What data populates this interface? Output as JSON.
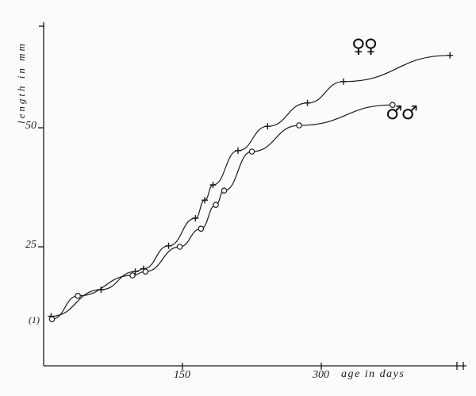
{
  "figure": {
    "background": "#fbfbfa",
    "ink": "#1a1a1a"
  },
  "chart_data": {
    "type": "line",
    "title": "",
    "xlabel": "age in days",
    "ylabel": "length in mm",
    "x_ticks": [
      150,
      300
    ],
    "y_ticks": [
      25,
      50
    ],
    "xlim": [
      0,
      457
    ],
    "ylim": [
      0,
      72
    ],
    "grid": false,
    "annotation_first_point": "(1)",
    "legend_position": "inline-right",
    "series": [
      {
        "name": "females",
        "marker": "plus",
        "legend_symbol": "♀♀",
        "points": [
          [
            8,
            10.4
          ],
          [
            62,
            16.0
          ],
          [
            99,
            19.8
          ],
          [
            108,
            20.4
          ],
          [
            135,
            25.2
          ],
          [
            164,
            31.0
          ],
          [
            174,
            34.8
          ],
          [
            183,
            38.0
          ],
          [
            210,
            45.2
          ],
          [
            242,
            50.3
          ],
          [
            285,
            55.2
          ],
          [
            324,
            59.7
          ],
          [
            439,
            65.2
          ]
        ]
      },
      {
        "name": "males",
        "marker": "circle",
        "legend_symbol": "♂♂",
        "points": [
          [
            9,
            9.8
          ],
          [
            37,
            14.7
          ],
          [
            96,
            19.0
          ],
          [
            110,
            19.8
          ],
          [
            147,
            25.0
          ],
          [
            170,
            28.8
          ],
          [
            186,
            33.8
          ],
          [
            195,
            36.8
          ],
          [
            225,
            45.0
          ],
          [
            276,
            50.5
          ],
          [
            377,
            54.8
          ]
        ]
      }
    ]
  }
}
